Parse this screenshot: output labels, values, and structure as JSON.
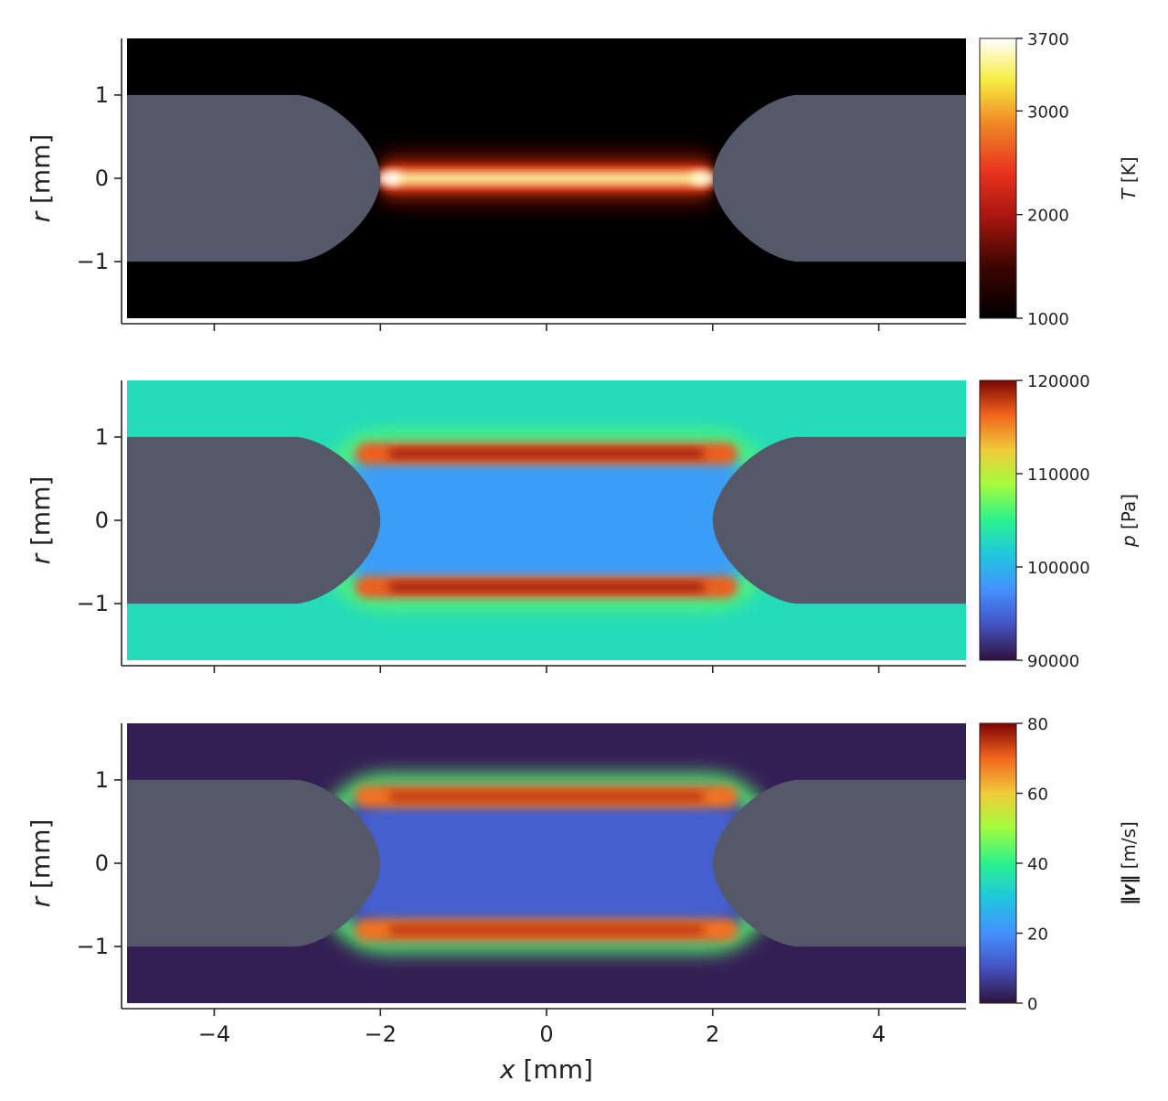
{
  "chart_data": [
    {
      "type": "heatmap",
      "field": "temperature",
      "ylabel_symbol": "r",
      "ylabel_unit": "[mm]",
      "xlim": [
        -5.05,
        5.05
      ],
      "ylim": [
        -1.68,
        1.68
      ],
      "yticks": [
        {
          "v": 1,
          "label": "1"
        },
        {
          "v": 0,
          "label": "0"
        },
        {
          "v": -1,
          "label": "−1"
        }
      ],
      "colorbar": {
        "title_symbol": "T",
        "title_unit": "[K]",
        "range": [
          1000,
          3700
        ],
        "ticks": [
          {
            "v": 1000,
            "label": "1000"
          },
          {
            "v": 2000,
            "label": "2000"
          },
          {
            "v": 3000,
            "label": "3000"
          },
          {
            "v": 3700,
            "label": "3700"
          }
        ],
        "colormap": "black-red-yellow-white"
      },
      "background": "#000000",
      "features": [
        {
          "shape": "hot-channel",
          "x_range": [
            -2.0,
            2.0
          ],
          "r_half_width": 0.12,
          "peak": 3500
        }
      ]
    },
    {
      "type": "heatmap",
      "field": "pressure",
      "ylabel_symbol": "r",
      "ylabel_unit": "[mm]",
      "xlim": [
        -5.05,
        5.05
      ],
      "ylim": [
        -1.68,
        1.68
      ],
      "yticks": [
        {
          "v": 1,
          "label": "1"
        },
        {
          "v": 0,
          "label": "0"
        },
        {
          "v": -1,
          "label": "−1"
        }
      ],
      "colorbar": {
        "title_symbol": "p",
        "title_unit": "[Pa]",
        "range": [
          90000,
          120000
        ],
        "ticks": [
          {
            "v": 90000,
            "label": "90000"
          },
          {
            "v": 100000,
            "label": "100000"
          },
          {
            "v": 110000,
            "label": "110000"
          },
          {
            "v": 120000,
            "label": "120000"
          }
        ],
        "colormap": "turbo"
      },
      "background_value": 103000,
      "features": [
        {
          "shape": "shock-shell",
          "x_range": [
            -2.6,
            2.6
          ],
          "r_outer": 0.95,
          "band_r": 0.8,
          "peak": 119000,
          "interior": 98500
        }
      ]
    },
    {
      "type": "heatmap",
      "field": "velocity_magnitude",
      "ylabel_symbol": "r",
      "ylabel_unit": "[mm]",
      "xlabel_symbol": "x",
      "xlabel_unit": "[mm]",
      "xlim": [
        -5.05,
        5.05
      ],
      "ylim": [
        -1.68,
        1.68
      ],
      "xticks": [
        {
          "v": -4,
          "label": "−4"
        },
        {
          "v": -2,
          "label": "−2"
        },
        {
          "v": 0,
          "label": "0"
        },
        {
          "v": 2,
          "label": "2"
        },
        {
          "v": 4,
          "label": "4"
        }
      ],
      "yticks": [
        {
          "v": 1,
          "label": "1"
        },
        {
          "v": 0,
          "label": "0"
        },
        {
          "v": -1,
          "label": "−1"
        }
      ],
      "colorbar": {
        "title_symbol": "‖v‖",
        "title_unit": "[m/s]",
        "range": [
          0,
          80
        ],
        "ticks": [
          {
            "v": 0,
            "label": "0"
          },
          {
            "v": 20,
            "label": "20"
          },
          {
            "v": 40,
            "label": "40"
          },
          {
            "v": 60,
            "label": "60"
          },
          {
            "v": 80,
            "label": "80"
          }
        ],
        "colormap": "turbo"
      },
      "background_value": 2,
      "features": [
        {
          "shape": "shock-shell",
          "x_range": [
            -2.6,
            2.6
          ],
          "r_outer": 0.95,
          "band_r": 0.8,
          "peak": 75,
          "interior": 12
        }
      ]
    }
  ],
  "electrodes": {
    "color": "#545869",
    "tip_x": [
      -2.0,
      2.0
    ],
    "shaft_radius": 1.0,
    "shaft_start_x": 3.0
  }
}
